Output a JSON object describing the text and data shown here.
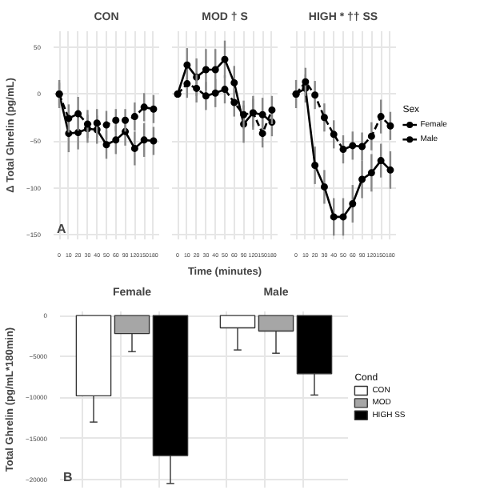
{
  "chart_data": [
    {
      "type": "line",
      "title": "CON",
      "ylabel": "Δ Total Ghrelin (pg/mL)",
      "annotations": [
        "A"
      ],
      "categories": [
        "0",
        "10",
        "20",
        "30",
        "40",
        "50",
        "60",
        "90",
        "120",
        "150",
        "180"
      ],
      "ylim": [
        -155,
        67
      ],
      "yticks": [
        -150,
        -100,
        -50,
        0,
        50
      ],
      "grid": true,
      "marker": "circle",
      "series": [
        {
          "color": "#000000",
          "line_style": "solid",
          "values": [
            0,
            -42,
            -41,
            -37,
            -38,
            -54,
            -49,
            -40,
            -58,
            -49,
            -50
          ],
          "errors": [
            12,
            20,
            18,
            15,
            15,
            15,
            15,
            15,
            18,
            18,
            15
          ]
        },
        {
          "color": "#000000",
          "line_style": "dashed",
          "values": [
            0,
            -26,
            -21,
            -32,
            -31,
            -33,
            -28,
            -28,
            -24,
            -14,
            -16
          ],
          "errors": [
            15,
            15,
            18,
            15,
            15,
            15,
            12,
            12,
            15,
            15,
            15
          ]
        }
      ]
    },
    {
      "type": "line",
      "title": "MOD † S",
      "xlabel": "Time (minutes)",
      "categories": [
        "0",
        "10",
        "20",
        "30",
        "40",
        "50",
        "60",
        "90",
        "120",
        "150",
        "180"
      ],
      "ylim": [
        -155,
        67
      ],
      "yticks": [
        -150,
        -100,
        -50,
        0,
        50
      ],
      "tick_labels": "x",
      "grid": true,
      "marker": "circle",
      "series": [
        {
          "color": "#000000",
          "line_style": "solid",
          "values": [
            0,
            31,
            18,
            26,
            26,
            37,
            12,
            -32,
            -20,
            -22,
            -30
          ],
          "errors": [
            null,
            18,
            20,
            22,
            22,
            20,
            18,
            20,
            18,
            18,
            15
          ]
        },
        {
          "color": "#000000",
          "line_style": "dashed",
          "values": [
            0,
            11,
            6,
            -2,
            1,
            5,
            -9,
            -22,
            -20,
            -42,
            -17
          ],
          "errors": [
            null,
            15,
            15,
            15,
            15,
            15,
            15,
            15,
            15,
            15,
            15
          ]
        }
      ]
    },
    {
      "type": "line",
      "title": "HIGH * †† SS",
      "legend_title": "Sex",
      "legend": "right",
      "categories": [
        "0",
        "10",
        "20",
        "30",
        "40",
        "50",
        "60",
        "90",
        "120",
        "150",
        "180"
      ],
      "ylim": [
        -155,
        67
      ],
      "yticks": [
        -150,
        -100,
        -50,
        0,
        50
      ],
      "tick_labels": "x",
      "grid": true,
      "marker": "circle",
      "series": [
        {
          "name": "Female",
          "color": "#000000",
          "line_style": "solid",
          "values": [
            0,
            6,
            -76,
            -99,
            -131,
            -131,
            -117,
            -91,
            -84,
            -71,
            -81
          ],
          "errors": [
            15,
            15,
            20,
            18,
            20,
            20,
            20,
            20,
            20,
            18,
            20
          ]
        },
        {
          "name": "Male",
          "color": "#000000",
          "line_style": "dashed",
          "values": [
            0,
            13,
            -1,
            -25,
            -43,
            -59,
            -55,
            -56,
            -45,
            -24,
            -34
          ],
          "errors": [
            null,
            15,
            15,
            15,
            15,
            15,
            15,
            15,
            15,
            18,
            15
          ]
        }
      ]
    },
    {
      "type": "bar",
      "ylabel": "Total Ghrelin (pg/mL*180min)",
      "legend_title": "Cond",
      "legend": "right",
      "annotations": [
        "B"
      ],
      "categories": [
        "Female",
        "Male"
      ],
      "ylim": [
        -21000,
        500
      ],
      "yticks": [
        -20000,
        -15000,
        -10000,
        -5000,
        0
      ],
      "grid": true,
      "series": [
        {
          "name": "CON",
          "color": "#ffffff",
          "values": [
            -9800,
            -1500
          ],
          "errors": [
            [
              -13000,
              -9800
            ],
            [
              -4200,
              -1500
            ]
          ]
        },
        {
          "name": "MOD",
          "color": "#a6a6a6",
          "values": [
            -2200,
            -1900
          ],
          "errors": [
            [
              -4400,
              -2200
            ],
            [
              -4600,
              -1900
            ]
          ]
        },
        {
          "name": "HIGH SS",
          "color": "#000000",
          "values": [
            -17100,
            -7100
          ],
          "errors": [
            [
              -20500,
              -17100
            ],
            [
              -9700,
              -7100
            ]
          ]
        }
      ]
    }
  ]
}
